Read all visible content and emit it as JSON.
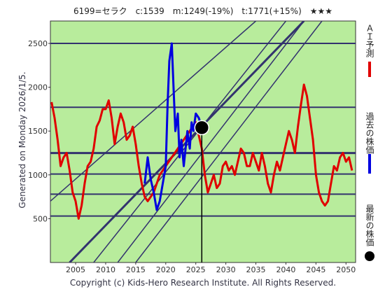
{
  "chart_data": {
    "type": "line",
    "title": "6199=セラク　c:1539　m:1249(-19%)　t:1771(+15%)　★★★",
    "side_label": "Generated on Monday 2026/1/5.",
    "footer": "Copyright (c) Kids-Hero Research Institute. All Rights Reserved.",
    "xlim": [
      2000.8,
      2051.6
    ],
    "ylim": [
      0,
      2756
    ],
    "xticks": [
      2005,
      2010,
      2015,
      2020,
      2025,
      2030,
      2035,
      2040,
      2045,
      2050
    ],
    "yticks": [
      500,
      1000,
      1500,
      2000,
      2500
    ],
    "levels": [
      2500,
      1771,
      1249,
      1010,
      780,
      530
    ],
    "trend_lines": [
      {
        "x": [
          2000.8,
          2035
        ],
        "y": [
          700,
          2756
        ]
      },
      {
        "x": [
          2004,
          2043
        ],
        "y": [
          0,
          2756
        ]
      },
      {
        "x": [
          2008,
          2040
        ],
        "y": [
          0,
          2756
        ]
      },
      {
        "x": [
          2012,
          2043
        ],
        "y": [
          0,
          2756
        ]
      },
      {
        "x": [
          2015,
          2046
        ],
        "y": [
          0,
          2756
        ]
      }
    ],
    "series": [
      {
        "name": "ＡＩ予測",
        "color": "#e00000",
        "x": [
          2001,
          2001.5,
          2002,
          2002.5,
          2003,
          2003.5,
          2004,
          2004.5,
          2005,
          2005.5,
          2006,
          2006.5,
          2007,
          2007.5,
          2008,
          2008.5,
          2009,
          2009.5,
          2010,
          2010.5,
          2011,
          2011.5,
          2012,
          2012.5,
          2013,
          2013.5,
          2014,
          2014.5,
          2015,
          2015.5,
          2016,
          2016.5,
          2017,
          2018,
          2019,
          2020,
          2021,
          2022,
          2023,
          2024,
          2025,
          2026,
          2026.5,
          2027,
          2027.5,
          2028,
          2028.5,
          2029,
          2029.5,
          2030,
          2030.5,
          2031,
          2031.5,
          2032,
          2032.5,
          2033,
          2033.5,
          2034,
          2034.5,
          2035,
          2035.5,
          2036,
          2036.5,
          2037,
          2037.5,
          2038,
          2038.5,
          2039,
          2039.5,
          2040,
          2040.5,
          2041,
          2041.5,
          2042,
          2042.5,
          2043,
          2043.5,
          2044,
          2044.5,
          2045,
          2045.5,
          2046,
          2046.5,
          2047,
          2047.5,
          2048,
          2048.5,
          2049,
          2049.5,
          2050,
          2050.5,
          2051
        ],
        "values": [
          1830,
          1650,
          1400,
          1100,
          1200,
          1250,
          1050,
          800,
          700,
          500,
          650,
          900,
          1100,
          1150,
          1300,
          1550,
          1620,
          1750,
          1750,
          1850,
          1650,
          1350,
          1550,
          1700,
          1600,
          1400,
          1450,
          1550,
          1350,
          1100,
          900,
          750,
          700,
          800,
          1000,
          1100,
          1200,
          1300,
          1400,
          1500,
          1600,
          1300,
          1000,
          800,
          900,
          1000,
          850,
          900,
          1100,
          1150,
          1050,
          1100,
          1000,
          1150,
          1300,
          1250,
          1100,
          1100,
          1250,
          1150,
          1050,
          1250,
          1100,
          900,
          800,
          1000,
          1150,
          1050,
          1200,
          1350,
          1500,
          1400,
          1250,
          1550,
          1800,
          2030,
          1900,
          1650,
          1400,
          1000,
          800,
          700,
          650,
          700,
          900,
          1100,
          1050,
          1200,
          1250,
          1150,
          1200,
          1050
        ]
      },
      {
        "name": "過去の株価",
        "color": "#0000e0",
        "x": [
          2016.5,
          2017,
          2017.5,
          2018,
          2018.5,
          2019,
          2019.5,
          2020,
          2020.3,
          2020.6,
          2021,
          2021.3,
          2021.6,
          2022,
          2022.3,
          2022.6,
          2023,
          2023.3,
          2023.6,
          2024,
          2024.3,
          2024.6,
          2025,
          2025.5,
          2026
        ],
        "values": [
          900,
          1200,
          950,
          800,
          600,
          700,
          900,
          1100,
          1800,
          2300,
          2500,
          2000,
          1500,
          1700,
          1200,
          1400,
          1100,
          1300,
          1500,
          1300,
          1600,
          1500,
          1700,
          1650,
          1539
        ]
      }
    ],
    "latest": {
      "name": "最新の株価",
      "x": 2026,
      "value": 1539
    }
  }
}
